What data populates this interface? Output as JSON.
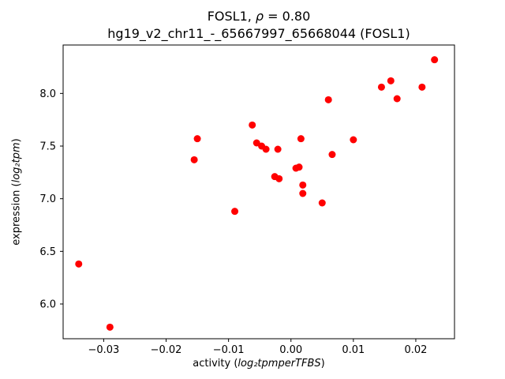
{
  "title": {
    "line1_pre": "FOSL1, ",
    "line1_rho": "ρ",
    "line1_post": " = 0.80",
    "line2": "hg19_v2_chr11_-_65667997_65668044 (FOSL1)"
  },
  "axes": {
    "xlabel_pre": "activity (",
    "xlabel_math": "log₂tpmperTFBS",
    "xlabel_close": ")",
    "ylabel_pre": "expression (",
    "ylabel_math": "log₂tpm",
    "ylabel_close": ")"
  },
  "chart_data": {
    "type": "scatter",
    "title": "FOSL1, ρ = 0.80",
    "subtitle": "hg19_v2_chr11_-_65667997_65668044 (FOSL1)",
    "xlabel": "activity (log₂tpmperTFBS)",
    "ylabel": "expression (log₂tpm)",
    "marker_color": "#ff0000",
    "marker_radius": 4.5,
    "grid": false,
    "legend": "none",
    "xlim": [
      -0.0365,
      0.0262
    ],
    "ylim": [
      5.67,
      8.46
    ],
    "xticks": [
      -0.03,
      -0.02,
      -0.01,
      0.0,
      0.01,
      0.02
    ],
    "xtick_labels": [
      "−0.03",
      "−0.02",
      "−0.01",
      "0.00",
      "0.01",
      "0.02"
    ],
    "yticks": [
      6.0,
      6.5,
      7.0,
      7.5,
      8.0
    ],
    "ytick_labels": [
      "6.0",
      "6.5",
      "7.0",
      "7.5",
      "8.0"
    ],
    "points": [
      [
        -0.034,
        6.38
      ],
      [
        -0.029,
        5.78
      ],
      [
        -0.0155,
        7.37
      ],
      [
        -0.015,
        7.57
      ],
      [
        -0.009,
        6.88
      ],
      [
        -0.0062,
        7.7
      ],
      [
        -0.0055,
        7.53
      ],
      [
        -0.0047,
        7.5
      ],
      [
        -0.004,
        7.47
      ],
      [
        -0.0021,
        7.47
      ],
      [
        -0.0026,
        7.21
      ],
      [
        -0.0019,
        7.19
      ],
      [
        0.0008,
        7.29
      ],
      [
        0.0013,
        7.3
      ],
      [
        0.0016,
        7.57
      ],
      [
        0.0019,
        7.13
      ],
      [
        0.0019,
        7.05
      ],
      [
        0.005,
        6.96
      ],
      [
        0.006,
        7.94
      ],
      [
        0.0066,
        7.42
      ],
      [
        0.01,
        7.56
      ],
      [
        0.0145,
        8.06
      ],
      [
        0.016,
        8.12
      ],
      [
        0.017,
        7.95
      ],
      [
        0.021,
        8.06
      ],
      [
        0.023,
        8.32
      ]
    ]
  }
}
